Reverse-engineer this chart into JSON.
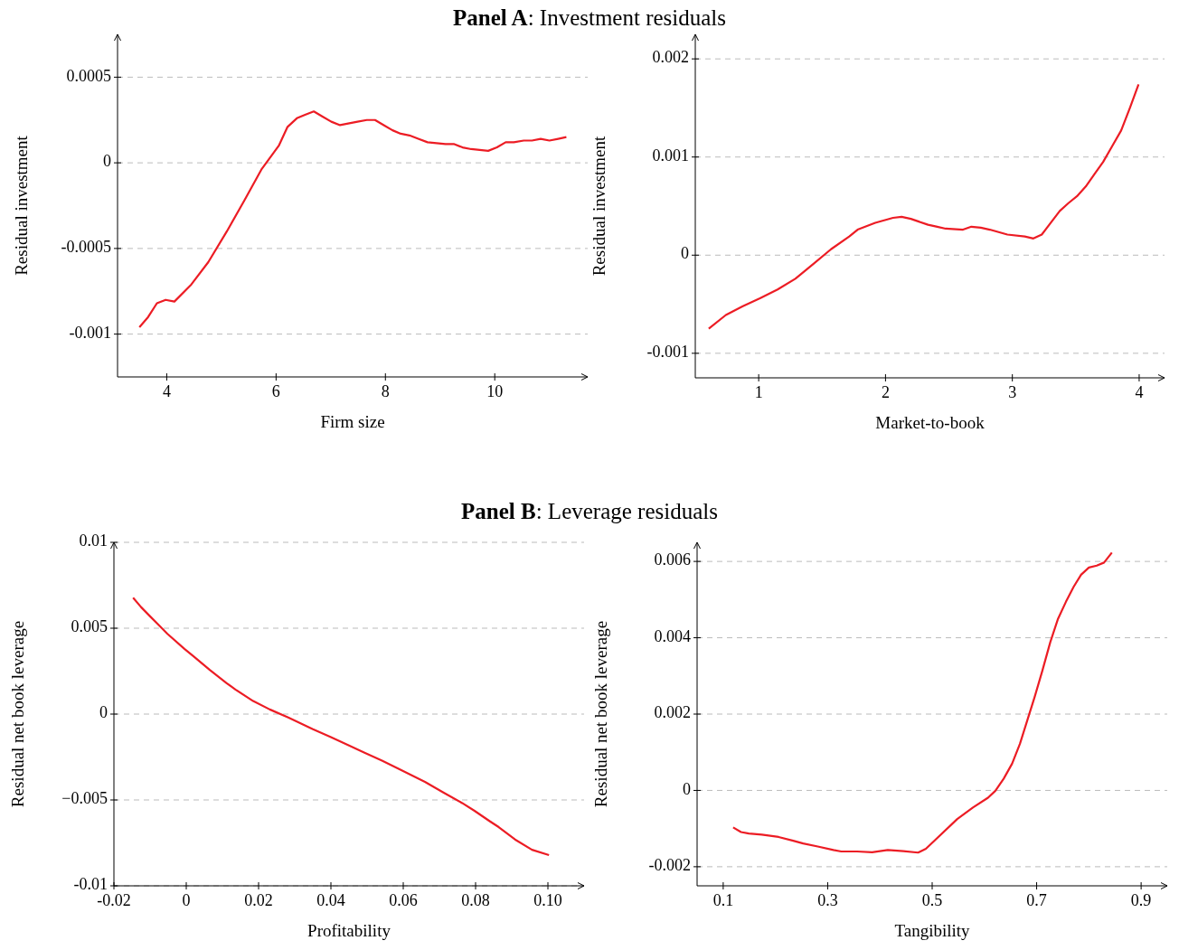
{
  "chart_data": [
    {
      "type": "line",
      "title": "Panel A: Investment residuals",
      "xlabel": "Firm size",
      "ylabel": "Residual investment",
      "xlim": [
        3.1,
        11.7
      ],
      "xticks": [
        4,
        6,
        8,
        10
      ],
      "ylim": [
        -0.00125,
        0.00075
      ],
      "yticks": [
        0.0005,
        0,
        -0.0005,
        -0.001
      ],
      "grid": "y",
      "series": [
        {
          "color": "#ec1c24",
          "x": [
            3.5,
            3.66,
            3.82,
            3.98,
            4.14,
            4.45,
            4.76,
            5.1,
            5.42,
            5.73,
            5.89,
            6.05,
            6.21,
            6.38,
            6.53,
            6.69,
            6.85,
            7.01,
            7.17,
            7.49,
            7.66,
            7.81,
            7.97,
            8.13,
            8.28,
            8.44,
            8.6,
            8.77,
            9.1,
            9.25,
            9.41,
            9.57,
            9.88,
            10.04,
            10.2,
            10.35,
            10.53,
            10.68,
            10.84,
            11.0,
            11.16,
            11.31
          ],
          "values": [
            -0.00096,
            -0.0009,
            -0.00082,
            -0.0008,
            -0.00081,
            -0.00071,
            -0.00058,
            -0.0004,
            -0.00022,
            -4e-05,
            3e-05,
            0.0001,
            0.00021,
            0.00026,
            0.00028,
            0.0003,
            0.00027,
            0.00024,
            0.00022,
            0.00024,
            0.00025,
            0.00025,
            0.00022,
            0.00019,
            0.00017,
            0.00016,
            0.00014,
            0.00012,
            0.00011,
            0.00011,
            9e-05,
            8e-05,
            7e-05,
            9e-05,
            0.00012,
            0.00012,
            0.00013,
            0.00013,
            0.00014,
            0.00013,
            0.00014,
            0.00015
          ]
        }
      ]
    },
    {
      "type": "line",
      "xlabel": "Market-to-book",
      "ylabel": "Residual investment",
      "xlim": [
        0.5,
        4.2
      ],
      "xticks": [
        1,
        2,
        3,
        4
      ],
      "ylim": [
        -0.00125,
        0.00225
      ],
      "yticks": [
        0.002,
        0.001,
        0,
        -0.001
      ],
      "grid": "y",
      "series": [
        {
          "color": "#ec1c24",
          "x": [
            0.606,
            0.741,
            0.875,
            1.01,
            1.149,
            1.289,
            1.43,
            1.57,
            1.714,
            1.78,
            1.919,
            2.059,
            2.127,
            2.2,
            2.335,
            2.408,
            2.474,
            2.611,
            2.677,
            2.751,
            2.822,
            2.961,
            3.098,
            3.166,
            3.232,
            3.374,
            3.442,
            3.509,
            3.579,
            3.65,
            3.716,
            3.787,
            3.858,
            3.927,
            3.995
          ],
          "values": [
            -0.00075,
            -0.00061,
            -0.00052,
            -0.00044,
            -0.00035,
            -0.00024,
            -9e-05,
            6e-05,
            0.00019,
            0.00026,
            0.00033,
            0.00038,
            0.00039,
            0.00037,
            0.00031,
            0.00029,
            0.00027,
            0.00026,
            0.00029,
            0.00028,
            0.00026,
            0.00021,
            0.00019,
            0.00017,
            0.00021,
            0.00045,
            0.00053,
            0.0006,
            0.0007,
            0.00083,
            0.00095,
            0.00111,
            0.00127,
            0.0015,
            0.00174
          ]
        }
      ]
    },
    {
      "type": "line",
      "title": "Panel B: Leverage residuals",
      "xlabel": "Profitability",
      "ylabel": "Residual net book leverage",
      "xlim": [
        -0.02,
        0.11
      ],
      "xticks": [
        {
          "value": -0.02,
          "label": "-0.02"
        },
        0,
        0.02,
        0.04,
        0.06,
        0.08,
        {
          "value": 0.1,
          "label": "0.10"
        }
      ],
      "ylim": [
        -0.01,
        0.01
      ],
      "yticks": [
        0.01,
        0.005,
        0,
        {
          "value": -0.005,
          "label": "−0.005"
        },
        {
          "value": -0.01,
          "label": "-0.01"
        }
      ],
      "grid": "y",
      "series": [
        {
          "color": "#ec1c24",
          "x": [
            -0.0147,
            -0.0125,
            -0.01,
            -0.0076,
            -0.0052,
            -0.0005,
            0.0021,
            0.0065,
            0.0111,
            0.0136,
            0.0185,
            0.0231,
            0.0282,
            0.0349,
            0.04,
            0.0446,
            0.0493,
            0.054,
            0.0587,
            0.066,
            0.0712,
            0.0763,
            0.0797,
            0.084,
            0.0864,
            0.0909,
            0.0956,
            0.1003
          ],
          "values": [
            0.00678,
            0.00623,
            0.00569,
            0.00518,
            0.00467,
            0.0038,
            0.00335,
            0.00257,
            0.00181,
            0.00143,
            0.00076,
            0.00027,
            -0.0002,
            -0.00087,
            -0.00134,
            -0.00179,
            -0.00225,
            -0.0027,
            -0.00319,
            -0.00395,
            -0.00458,
            -0.00518,
            -0.00563,
            -0.00625,
            -0.00658,
            -0.0073,
            -0.0079,
            -0.00821
          ]
        }
      ]
    },
    {
      "type": "line",
      "xlabel": "Tangibility",
      "ylabel": "Residual net book leverage",
      "xlim": [
        0.05,
        0.95
      ],
      "xticks": [
        0.1,
        0.3,
        0.5,
        0.7,
        0.9
      ],
      "ylim": [
        -0.0025,
        0.0065
      ],
      "yticks": [
        0.006,
        0.004,
        0.002,
        0,
        -0.002
      ],
      "grid": "y",
      "series": [
        {
          "color": "#ec1c24",
          "x": [
            0.119,
            0.134,
            0.149,
            0.174,
            0.206,
            0.234,
            0.253,
            0.281,
            0.311,
            0.326,
            0.356,
            0.385,
            0.415,
            0.445,
            0.473,
            0.488,
            0.504,
            0.548,
            0.578,
            0.607,
            0.621,
            0.637,
            0.653,
            0.668,
            0.682,
            0.696,
            0.711,
            0.726,
            0.741,
            0.756,
            0.771,
            0.785,
            0.8,
            0.815,
            0.829,
            0.844
          ],
          "values": [
            -0.00097,
            -0.00109,
            -0.00113,
            -0.00116,
            -0.00122,
            -0.00132,
            -0.00139,
            -0.00147,
            -0.00156,
            -0.0016,
            -0.0016,
            -0.00162,
            -0.00156,
            -0.00159,
            -0.00163,
            -0.00153,
            -0.00132,
            -0.00075,
            -0.00045,
            -0.00019,
            -1e-05,
            0.00031,
            0.0007,
            0.00122,
            0.00183,
            0.00244,
            0.00314,
            0.00388,
            0.0045,
            0.00494,
            0.00534,
            0.00565,
            0.00584,
            0.00589,
            0.00597,
            0.00623
          ]
        }
      ]
    }
  ]
}
